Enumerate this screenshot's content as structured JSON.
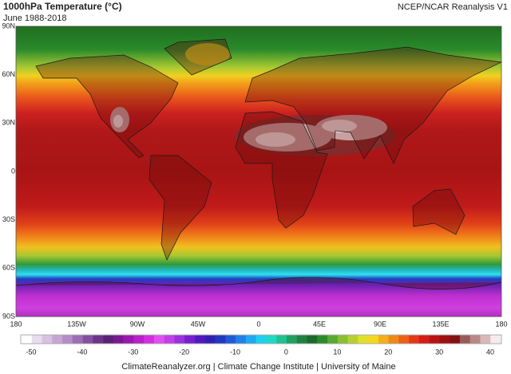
{
  "header": {
    "title": "1000hPa Temperature (°C)",
    "subtitle": "June 1988-2018",
    "source": "NCEP/NCAR Reanalysis V1"
  },
  "map": {
    "lat_labels": [
      "90N",
      "60N",
      "30N",
      "0",
      "30S",
      "60S",
      "90S"
    ],
    "lon_labels": [
      "180",
      "135W",
      "90W",
      "45W",
      "0",
      "45E",
      "90E",
      "135E",
      "180"
    ]
  },
  "colorbar": {
    "ticks": [
      -50,
      -40,
      -30,
      -20,
      -10,
      0,
      10,
      20,
      30,
      40
    ],
    "colors": [
      "#ffffff",
      "#e8dcee",
      "#d6c2e0",
      "#c6a6d4",
      "#b48cc6",
      "#9c6cb4",
      "#84509e",
      "#6c3488",
      "#5a2074",
      "#7a1890",
      "#9a18b0",
      "#b820c8",
      "#d030e0",
      "#e050ee",
      "#c040e8",
      "#9a30e0",
      "#7420d0",
      "#5218c0",
      "#3020b0",
      "#2038c0",
      "#2058d8",
      "#2080e8",
      "#20a8f0",
      "#20d0f0",
      "#20d8c8",
      "#20c090",
      "#20a060",
      "#208040",
      "#1a6a2a",
      "#2a8a2a",
      "#58a830",
      "#88c030",
      "#b8d030",
      "#e0e028",
      "#f4d820",
      "#f4b018",
      "#f08818",
      "#ec6018",
      "#e43818",
      "#d41c18",
      "#b81414",
      "#9c1010",
      "#841010",
      "#9a5a5a",
      "#b88888",
      "#d8b8b8",
      "#f4ecec"
    ]
  },
  "footer": "ClimateReanalyzer.org | Climate Change Institute | University of Maine"
}
